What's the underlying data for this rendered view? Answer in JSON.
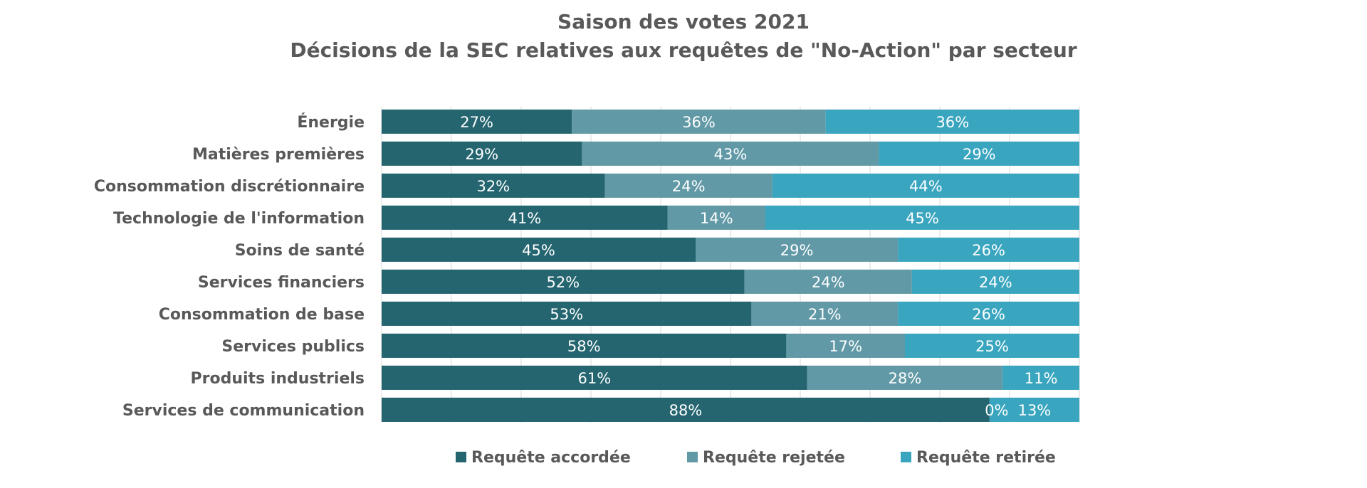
{
  "chart_data": {
    "type": "bar",
    "orientation": "horizontal",
    "stacked": true,
    "normalized": true,
    "title": "Saison des votes 2021",
    "subtitle": "Décisions de la SEC relatives aux requêtes de \"No-Action\" par secteur",
    "categories": [
      "Énergie",
      "Matières premières",
      "Consommation discrétionnaire",
      "Technologie de l'information",
      "Soins de santé",
      "Services financiers",
      "Consommation de base",
      "Services publics",
      "Produits industriels",
      "Services de communication"
    ],
    "series": [
      {
        "name": "Requête accordée",
        "color": "#246570",
        "values": [
          27,
          29,
          32,
          41,
          45,
          52,
          53,
          58,
          61,
          88
        ],
        "labels": [
          "27%",
          "29%",
          "32%",
          "41%",
          "45%",
          "52%",
          "53%",
          "58%",
          "61%",
          "88%"
        ]
      },
      {
        "name": "Requête rejetée",
        "color": "#6199a6",
        "values": [
          36,
          43,
          24,
          14,
          29,
          24,
          21,
          17,
          28,
          0
        ],
        "labels": [
          "36%",
          "43%",
          "24%",
          "14%",
          "29%",
          "24%",
          "21%",
          "17%",
          "28%",
          "0%"
        ]
      },
      {
        "name": "Requête retirée",
        "color": "#3aa5bf",
        "values": [
          36,
          29,
          44,
          45,
          26,
          24,
          26,
          25,
          11,
          13
        ],
        "labels": [
          "36%",
          "29%",
          "44%",
          "45%",
          "26%",
          "24%",
          "26%",
          "25%",
          "11%",
          "13%"
        ]
      }
    ],
    "xlim": [
      0,
      100
    ],
    "grid": true,
    "legend": "bottom"
  }
}
